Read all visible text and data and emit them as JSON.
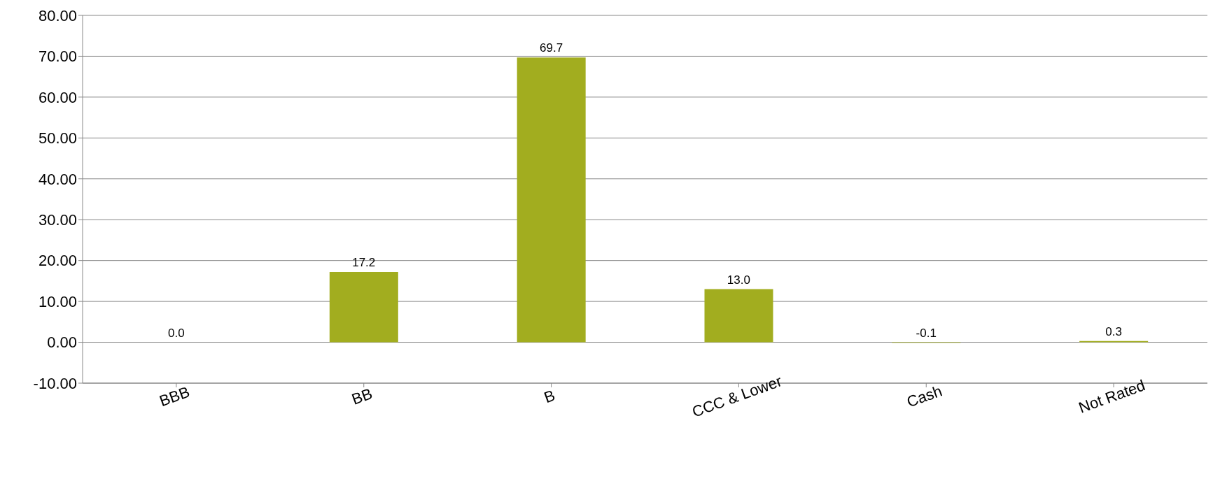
{
  "chart_data": {
    "type": "bar",
    "categories": [
      "BBB",
      "BB",
      "B",
      "CCC & Lower",
      "Cash",
      "Not Rated"
    ],
    "values": [
      0.0,
      17.2,
      69.7,
      13.0,
      -0.1,
      0.3
    ],
    "value_labels": [
      "0.0",
      "17.2",
      "69.7",
      "13.0",
      "-0.1",
      "0.3"
    ],
    "color": "#a2ad1f",
    "ylim": [
      -10,
      80
    ],
    "yticks": [
      {
        "value": -10,
        "label": "-10.00"
      },
      {
        "value": 0,
        "label": "0.00"
      },
      {
        "value": 10,
        "label": "10.00"
      },
      {
        "value": 20,
        "label": "20.00"
      },
      {
        "value": 30,
        "label": "30.00"
      },
      {
        "value": 40,
        "label": "40.00"
      },
      {
        "value": 50,
        "label": "50.00"
      },
      {
        "value": 60,
        "label": "60.00"
      },
      {
        "value": 70,
        "label": "70.00"
      },
      {
        "value": 80,
        "label": "80.00"
      }
    ],
    "grid": "y"
  }
}
